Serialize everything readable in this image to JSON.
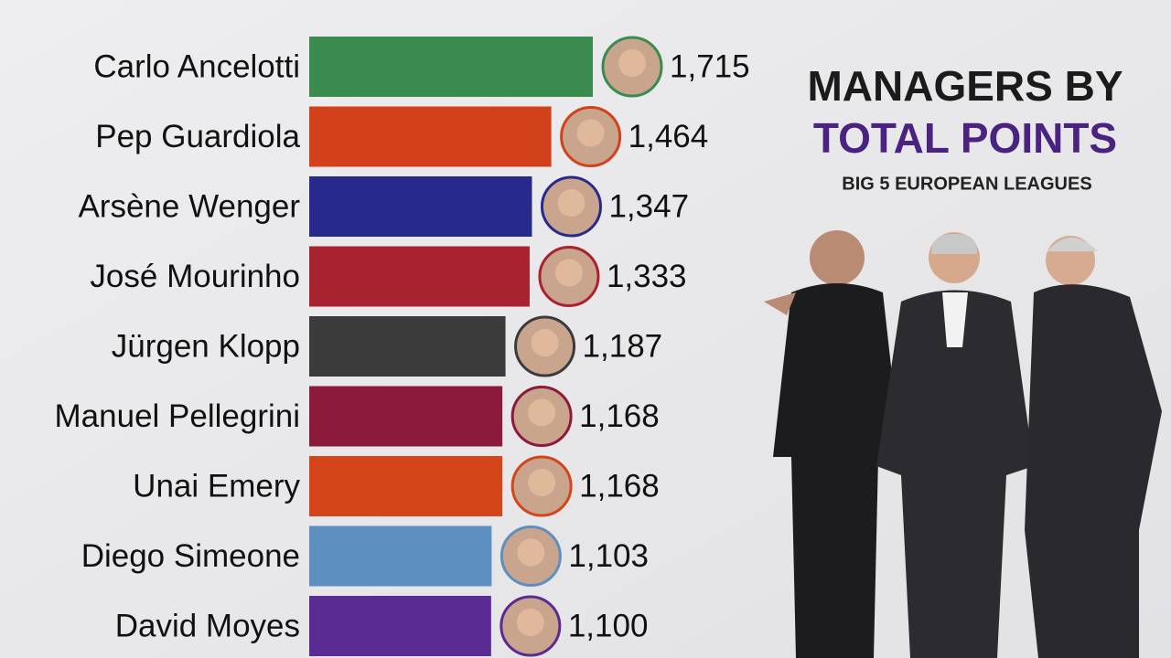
{
  "chart_data": {
    "type": "hbar",
    "title": "MANAGERS BY",
    "title_emphasis": "TOTAL POINTS",
    "subtitle": "BIG 5 EUROPEAN LEAGUES",
    "categories": [
      "Carlo Ancelotti",
      "Pep Guardiola",
      "Arsène Wenger",
      "José Mourinho",
      "Jürgen Klopp",
      "Manuel Pellegrini",
      "Unai Emery",
      "Diego Simeone",
      "David Moyes"
    ],
    "values": [
      1715,
      1464,
      1347,
      1333,
      1187,
      1168,
      1168,
      1103,
      1100
    ],
    "value_labels": [
      "1,715",
      "1,464",
      "1,347",
      "1,333",
      "1,187",
      "1,168",
      "1,168",
      "1,103",
      "1,100"
    ],
    "colors": [
      "#3b8b50",
      "#d3411b",
      "#272a8c",
      "#a8222f",
      "#3b3b3c",
      "#8c1a3a",
      "#d4461a",
      "#5d8fc0",
      "#5b2b94"
    ],
    "xlim": [
      0,
      1715
    ]
  }
}
